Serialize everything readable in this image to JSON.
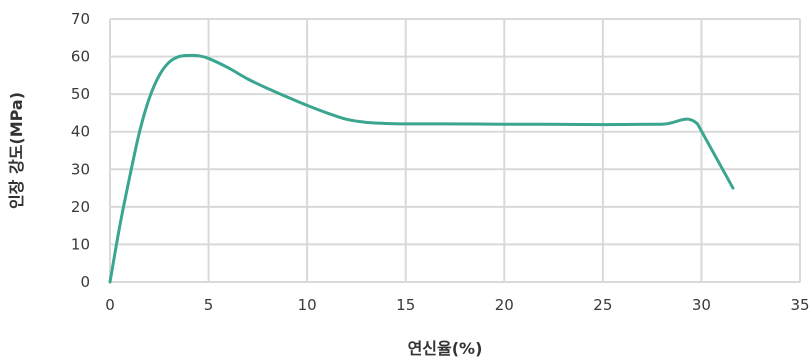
{
  "chart_data": {
    "type": "line",
    "title": "",
    "xlabel": "연신율(%)",
    "ylabel": "인장 강도(MPa)",
    "xlim": [
      0,
      35
    ],
    "ylim": [
      0,
      70
    ],
    "xticks": [
      0,
      5,
      10,
      15,
      20,
      25,
      30,
      35
    ],
    "yticks": [
      0,
      10,
      20,
      30,
      40,
      50,
      60,
      70
    ],
    "grid": true,
    "colors": {
      "series": "#3aa68f",
      "grid": "#d9d9d9",
      "text": "#3a3a3a"
    },
    "series": [
      {
        "x": [
          0,
          0.5,
          1,
          1.5,
          2,
          2.5,
          3,
          3.5,
          4,
          4.5,
          5,
          6,
          7,
          8,
          9,
          10,
          11,
          12,
          13,
          14,
          15,
          17,
          20,
          22,
          25,
          28,
          29.8,
          31.6
        ],
        "y": [
          0,
          15,
          28,
          40,
          49,
          55,
          58.5,
          60,
          60.3,
          60.2,
          59.5,
          57,
          54,
          51.5,
          49.2,
          47,
          45,
          43.3,
          42.5,
          42.2,
          42.1,
          42.1,
          42.0,
          42.0,
          41.9,
          42.0,
          42.1,
          25
        ]
      }
    ]
  }
}
